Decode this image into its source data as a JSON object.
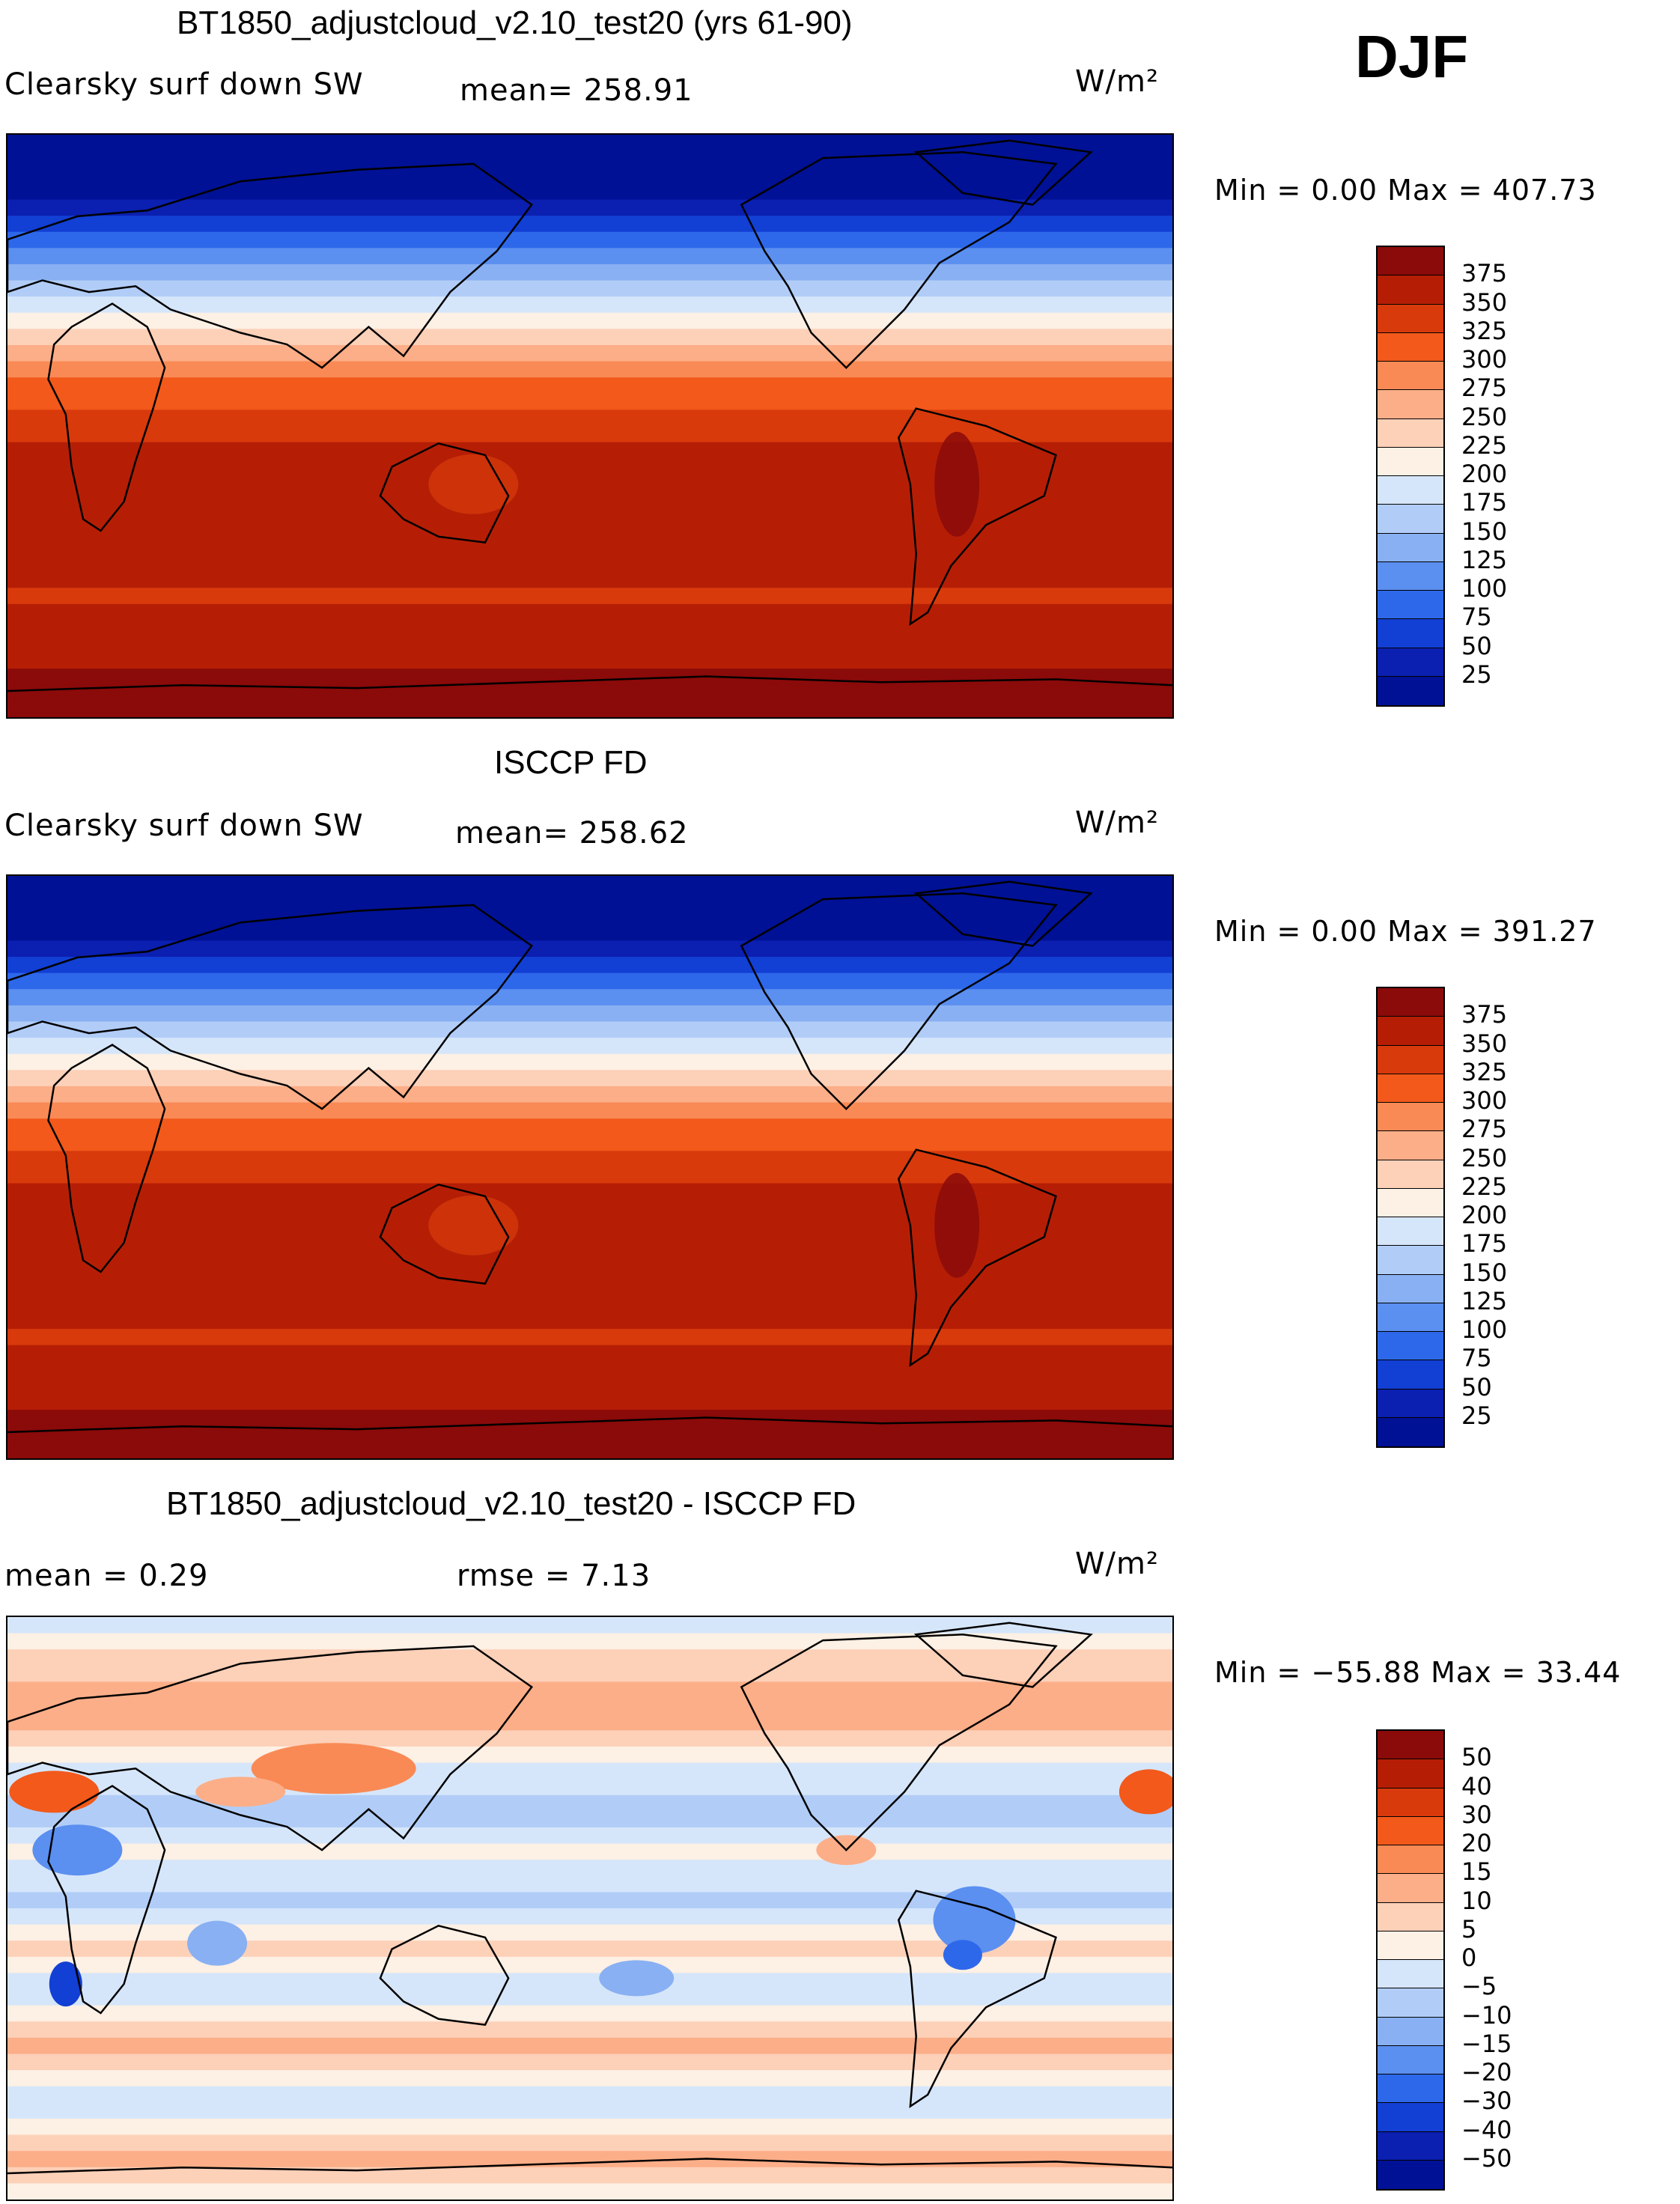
{
  "season": "DJF",
  "units": "W/m²",
  "panels": [
    {
      "title": "BT1850_adjustcloud_v2.10_test20 (yrs 61-90)",
      "variable": "Clearsky surf down SW",
      "stat": "mean=  258.91",
      "minmax": "Min =    0.00  Max  =  407.73",
      "levels": [
        "375",
        "350",
        "325",
        "300",
        "275",
        "250",
        "225",
        "200",
        "175",
        "150",
        "125",
        "100",
        "75",
        "50",
        "25"
      ],
      "colors": [
        "#8b0a0a",
        "#b51e05",
        "#d83a0c",
        "#f2591a",
        "#f98a55",
        "#fcae88",
        "#fdd0b8",
        "#fdf0e4",
        "#d6e6fa",
        "#b1cdf7",
        "#89b0f2",
        "#5b8ff0",
        "#2e68ea",
        "#123fd4",
        "#0b1fb0",
        "#001195"
      ]
    },
    {
      "title": "ISCCP FD",
      "variable": "Clearsky surf down SW",
      "stat": "mean=  258.62",
      "minmax": "Min =    0.00  Max  =  391.27",
      "levels": [
        "375",
        "350",
        "325",
        "300",
        "275",
        "250",
        "225",
        "200",
        "175",
        "150",
        "125",
        "100",
        "75",
        "50",
        "25"
      ],
      "colors": [
        "#8b0a0a",
        "#b51e05",
        "#d83a0c",
        "#f2591a",
        "#f98a55",
        "#fcae88",
        "#fdd0b8",
        "#fdf0e4",
        "#d6e6fa",
        "#b1cdf7",
        "#89b0f2",
        "#5b8ff0",
        "#2e68ea",
        "#123fd4",
        "#0b1fb0",
        "#001195"
      ]
    },
    {
      "title": "BT1850_adjustcloud_v2.10_test20 - ISCCP FD",
      "stat_mean": "mean =    0.29",
      "stat_rmse": "rmse =    7.13",
      "minmax": "Min = −55.88  Max  =   33.44",
      "levels": [
        "50",
        "40",
        "30",
        "20",
        "15",
        "10",
        "5",
        "0",
        "−5",
        "−10",
        "−15",
        "−20",
        "−30",
        "−40",
        "−50"
      ],
      "colors": [
        "#8b0a0a",
        "#b51e05",
        "#d83a0c",
        "#f2591a",
        "#f98a55",
        "#fcae88",
        "#fdd0b8",
        "#fdf0e4",
        "#d6e6fa",
        "#b1cdf7",
        "#89b0f2",
        "#5b8ff0",
        "#2e68ea",
        "#123fd4",
        "#0b1fb0",
        "#001195"
      ]
    }
  ]
}
